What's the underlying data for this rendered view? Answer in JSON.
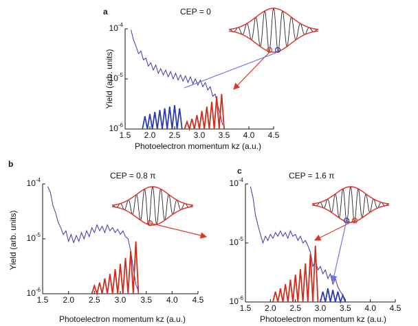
{
  "chart_data": [
    {
      "type": "line",
      "panel": "a",
      "title": "CEP = 0",
      "y_label": "Yield (arb. units)",
      "x_label": "Photoelectron momentum kz (a.u.)",
      "log_y": true,
      "xlim": [
        1.5,
        4.5
      ],
      "ylim": [
        1e-06,
        0.0001
      ],
      "xticks": [
        1.5,
        {
          "value": 2,
          "label": "2.0"
        },
        2.5,
        {
          "value": 3,
          "label": "3.0"
        },
        3.5,
        {
          "value": 4,
          "label": "4.0"
        },
        4.5
      ],
      "yticks": [
        {
          "value": 1e-06,
          "label": "10-6"
        },
        {
          "value": 1e-05,
          "label": "10-5"
        },
        {
          "value": 0.0001,
          "label": "10-4"
        }
      ],
      "series": [
        {
          "color": "#3b35a8",
          "x": [
            1.62,
            1.67,
            1.72,
            1.77,
            1.82,
            1.87,
            1.92,
            1.97,
            2.02,
            2.07,
            2.12,
            2.17,
            2.22,
            2.27,
            2.32,
            2.37,
            2.42,
            2.47,
            2.52,
            2.57,
            2.62,
            2.67,
            2.72,
            2.77,
            2.82,
            2.87,
            2.92,
            2.97,
            3.02,
            3.07,
            3.12,
            3.17,
            3.22,
            3.27,
            3.32,
            3.37,
            3.42,
            3.47
          ],
          "values": [
            9.5e-05,
            6e-05,
            4.5e-05,
            3.2e-05,
            3.6e-05,
            2.4e-05,
            2.6e-05,
            1.8e-05,
            2.1e-05,
            1.5e-05,
            1.9e-05,
            1.3e-05,
            1.6e-05,
            1.2e-05,
            1.5e-05,
            1.1e-05,
            1.4e-05,
            1e-05,
            1.3e-05,
            9.5e-06,
            1.2e-05,
            9e-06,
            1.15e-05,
            8.5e-06,
            1.1e-05,
            8e-06,
            1e-05,
            7.5e-06,
            9.5e-06,
            7e-06,
            8.5e-06,
            6e-06,
            7e-06,
            4.5e-06,
            5e-06,
            3e-06,
            2e-06,
            1.2e-06
          ]
        },
        {
          "color": "#2a3ab0",
          "x": [
            1.85,
            1.9,
            1.95,
            2.0,
            2.05,
            2.1,
            2.15,
            2.2,
            2.25,
            2.3,
            2.35,
            2.4,
            2.45,
            2.5,
            2.55,
            2.6,
            2.65
          ],
          "values": [
            1e-06,
            1.8e-06,
            1e-06,
            2e-06,
            1e-06,
            2.2e-06,
            1e-06,
            2.4e-06,
            1e-06,
            2.6e-06,
            1e-06,
            2.8e-06,
            1e-06,
            3e-06,
            1e-06,
            2.6e-06,
            1e-06
          ]
        },
        {
          "color": "#d42a1a",
          "x": [
            2.7,
            2.75,
            2.8,
            2.85,
            2.9,
            2.95,
            3.0,
            3.05,
            3.1,
            3.15,
            3.2,
            3.25,
            3.3,
            3.35,
            3.4,
            3.45,
            3.5
          ],
          "values": [
            1e-06,
            1.4e-06,
            1e-06,
            1.6e-06,
            1e-06,
            1.9e-06,
            1e-06,
            2.3e-06,
            1e-06,
            2.8e-06,
            1e-06,
            3.5e-06,
            1e-06,
            4.5e-06,
            1e-06,
            5e-06,
            1e-06
          ]
        }
      ]
    },
    {
      "type": "line",
      "panel": "b",
      "title": "CEP = 0.8 π",
      "y_label": "Yield (arb. units)",
      "x_label": "Photoelectron momentum kz (a.u.)",
      "log_y": true,
      "xlim": [
        1.5,
        4.5
      ],
      "ylim": [
        1e-06,
        0.0001
      ],
      "xticks": [
        1.5,
        {
          "value": 2,
          "label": "2.0"
        },
        2.5,
        {
          "value": 3,
          "label": "3.0"
        },
        3.5,
        {
          "value": 4,
          "label": "4.0"
        },
        4.5
      ],
      "yticks": [
        {
          "value": 1e-06,
          "label": "10-6"
        },
        {
          "value": 1e-05,
          "label": "10-5"
        },
        {
          "value": 0.0001,
          "label": "10-4"
        }
      ],
      "series": [
        {
          "color": "#3b35a8",
          "x": [
            1.6,
            1.65,
            1.7,
            1.75,
            1.8,
            1.85,
            1.9,
            1.95,
            2.0,
            2.05,
            2.1,
            2.15,
            2.2,
            2.25,
            2.3,
            2.35,
            2.4,
            2.45,
            2.5,
            2.55,
            2.6,
            2.65,
            2.7,
            2.75,
            2.8,
            2.85,
            2.9,
            2.95,
            3.0,
            3.05,
            3.1,
            3.15,
            3.2,
            3.25,
            3.3,
            3.35
          ],
          "values": [
            9e-05,
            7e-05,
            4e-05,
            3e-05,
            2e-05,
            1.6e-05,
            1.2e-05,
            1.4e-05,
            9e-06,
            1.2e-05,
            8.5e-06,
            1.15e-05,
            9e-06,
            1.3e-05,
            1e-05,
            1.4e-05,
            1.1e-05,
            1.6e-05,
            1.3e-05,
            1.8e-05,
            1.4e-05,
            1.7e-05,
            1.3e-05,
            1.8e-05,
            1.4e-05,
            1.6e-05,
            1.3e-05,
            1.5e-05,
            1.2e-05,
            1.4e-05,
            1.1e-05,
            1e-05,
            6e-06,
            3e-06,
            1.5e-06,
            1.1e-06
          ]
        },
        {
          "color": "#d42a1a",
          "x": [
            2.45,
            2.5,
            2.55,
            2.6,
            2.65,
            2.7,
            2.75,
            2.8,
            2.85,
            2.9,
            2.95,
            3.0,
            3.05,
            3.1,
            3.15,
            3.2,
            3.25,
            3.3,
            3.35
          ],
          "values": [
            1e-06,
            1.4e-06,
            1e-06,
            1.6e-06,
            1e-06,
            1.9e-06,
            1e-06,
            2.3e-06,
            1e-06,
            2.8e-06,
            1e-06,
            3.5e-06,
            1e-06,
            4.5e-06,
            1e-06,
            6e-06,
            1e-06,
            9e-06,
            1e-06
          ]
        }
      ]
    },
    {
      "type": "line",
      "panel": "c",
      "title": "CEP = 1.6 π",
      "x_label": "Photoelectron momentum kz (a.u.)",
      "log_y": true,
      "xlim": [
        1.5,
        4.5
      ],
      "ylim": [
        1e-06,
        0.0001
      ],
      "xticks": [
        1.5,
        {
          "value": 2,
          "label": "2.0"
        },
        2.5,
        {
          "value": 3,
          "label": "3.0"
        },
        3.5,
        {
          "value": 4,
          "label": "4.0"
        },
        4.5
      ],
      "yticks": [
        {
          "value": 1e-06,
          "label": "10-6"
        },
        {
          "value": 1e-05,
          "label": "10-5"
        },
        {
          "value": 0.0001,
          "label": "10-4"
        }
      ],
      "series": [
        {
          "color": "#3b35a8",
          "x": [
            1.6,
            1.65,
            1.7,
            1.75,
            1.8,
            1.85,
            1.9,
            1.95,
            2.0,
            2.05,
            2.1,
            2.15,
            2.2,
            2.25,
            2.3,
            2.35,
            2.4,
            2.45,
            2.5,
            2.55,
            2.6,
            2.65,
            2.7,
            2.75,
            2.8,
            2.85,
            2.9,
            2.95,
            3.0,
            3.05,
            3.1,
            3.15,
            3.2,
            3.25,
            3.3,
            3.35,
            3.4,
            3.45,
            3.5
          ],
          "values": [
            9e-05,
            6e-05,
            3e-05,
            2e-05,
            1.4e-05,
            1e-05,
            1.3e-05,
            1.1e-05,
            1.4e-05,
            1.2e-05,
            1.5e-05,
            1.3e-05,
            1.6e-05,
            1.3e-05,
            1.5e-05,
            1.2e-05,
            1.6e-05,
            1.3e-05,
            1.4e-05,
            1.1e-05,
            1.3e-05,
            1e-05,
            1.1e-05,
            9e-06,
            7e-06,
            4e-06,
            5e-06,
            3.5e-06,
            4e-06,
            3e-06,
            3.5e-06,
            2.5e-06,
            3e-06,
            2e-06,
            2.5e-06,
            1.8e-06,
            1.5e-06,
            1.3e-06,
            1.1e-06
          ]
        },
        {
          "color": "#d42a1a",
          "x": [
            2.05,
            2.1,
            2.15,
            2.2,
            2.25,
            2.3,
            2.35,
            2.4,
            2.45,
            2.5,
            2.55,
            2.6,
            2.65,
            2.7,
            2.75,
            2.8,
            2.85,
            2.9,
            2.95
          ],
          "values": [
            1e-06,
            1.5e-06,
            1e-06,
            1.7e-06,
            1e-06,
            2e-06,
            1e-06,
            2.4e-06,
            1e-06,
            2.9e-06,
            1e-06,
            3.6e-06,
            1e-06,
            4.5e-06,
            1e-06,
            6.5e-06,
            1e-06,
            9e-06,
            1e-06
          ]
        },
        {
          "color": "#2a3ab0",
          "x": [
            3.0,
            3.05,
            3.1,
            3.15,
            3.2,
            3.25,
            3.3,
            3.35,
            3.4,
            3.45,
            3.5
          ],
          "values": [
            1e-06,
            1.5e-06,
            1e-06,
            1.7e-06,
            1e-06,
            1.6e-06,
            1e-06,
            1.5e-06,
            1e-06,
            1.3e-06,
            1e-06
          ]
        }
      ]
    }
  ]
}
